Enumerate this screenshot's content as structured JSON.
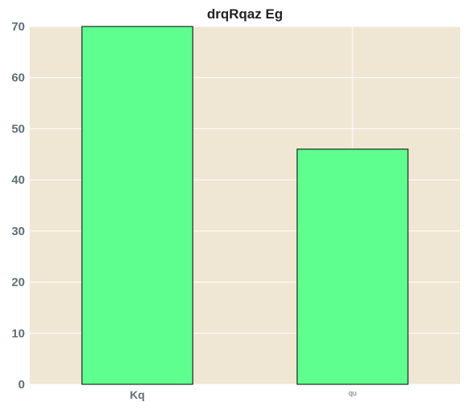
{
  "chart_data": {
    "type": "bar",
    "title": "drqRqaz Eg",
    "categories": [
      "Kq",
      "qu"
    ],
    "values": [
      70,
      46
    ],
    "xlabel": "",
    "ylabel": "",
    "ylim": [
      0,
      70
    ],
    "yticks": [
      0,
      10,
      20,
      30,
      40,
      50,
      60,
      70
    ],
    "grid": true,
    "colors": {
      "bar_fill": "#5fff8f",
      "bar_edge": "#000000",
      "plot_background": "#efe6d4",
      "grid": "#ffffff"
    }
  }
}
